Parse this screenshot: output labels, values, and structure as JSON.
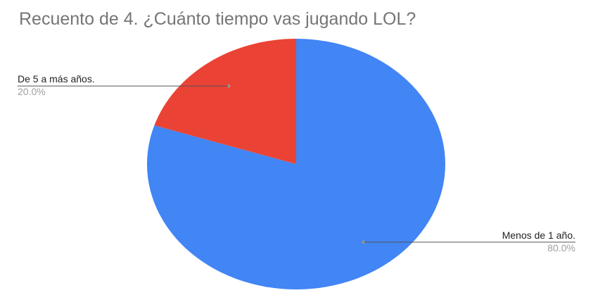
{
  "chart_data": {
    "type": "pie",
    "title": "Recuento de 4. ¿Cuánto tiempo vas jugando LOL?",
    "slices": [
      {
        "label": "Menos de 1 año.",
        "value": 80.0,
        "percent_label": "80.0%",
        "color": "#4285f4"
      },
      {
        "label": "De 5 a más años.",
        "value": 20.0,
        "percent_label": "20.0%",
        "color": "#ea4335"
      }
    ],
    "start_angle_deg": 0,
    "direction": "clockwise",
    "legend": "none"
  }
}
